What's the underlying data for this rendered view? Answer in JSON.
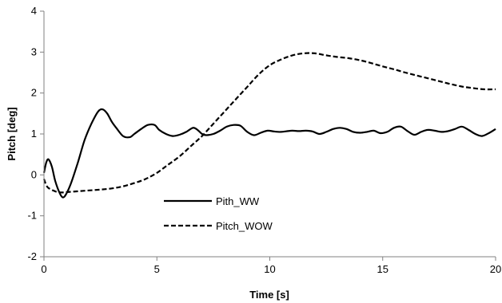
{
  "chart_data": {
    "type": "line",
    "title": "",
    "xlabel": "Time [s]",
    "ylabel": "Pitch [deg]",
    "xlim": [
      0,
      20
    ],
    "ylim": [
      -2,
      4
    ],
    "xticks": [
      "0",
      "5",
      "10",
      "15",
      "20"
    ],
    "yticks": [
      "-2",
      "-1",
      "0",
      "1",
      "2",
      "3",
      "4"
    ],
    "grid": false,
    "legend_position": "center",
    "series": [
      {
        "name": "Pith_WW",
        "style": "solid",
        "color": "#000000",
        "x": [
          0,
          0.1,
          0.2,
          0.35,
          0.5,
          0.7,
          0.85,
          1.0,
          1.2,
          1.5,
          1.8,
          2.1,
          2.4,
          2.6,
          2.8,
          3.0,
          3.2,
          3.5,
          3.8,
          4.0,
          4.3,
          4.6,
          4.9,
          5.1,
          5.4,
          5.7,
          6.0,
          6.3,
          6.6,
          6.8,
          7.0,
          7.2,
          7.5,
          7.8,
          8.1,
          8.4,
          8.7,
          9.0,
          9.3,
          9.6,
          9.9,
          10.2,
          10.5,
          10.8,
          11.0,
          11.3,
          11.6,
          11.9,
          12.2,
          12.5,
          12.8,
          13.1,
          13.4,
          13.7,
          14.0,
          14.3,
          14.6,
          14.9,
          15.2,
          15.5,
          15.8,
          16.1,
          16.4,
          16.7,
          17.0,
          17.3,
          17.6,
          17.9,
          18.2,
          18.5,
          18.8,
          19.1,
          19.4,
          19.7,
          20.0
        ],
        "values": [
          0.05,
          0.3,
          0.38,
          0.2,
          -0.15,
          -0.45,
          -0.55,
          -0.45,
          -0.2,
          0.3,
          0.85,
          1.25,
          1.55,
          1.6,
          1.5,
          1.3,
          1.15,
          0.95,
          0.92,
          1.0,
          1.12,
          1.22,
          1.22,
          1.1,
          1.0,
          0.95,
          0.98,
          1.05,
          1.15,
          1.1,
          1.0,
          0.97,
          1.0,
          1.08,
          1.18,
          1.22,
          1.2,
          1.05,
          0.97,
          1.03,
          1.08,
          1.06,
          1.05,
          1.07,
          1.08,
          1.07,
          1.08,
          1.06,
          1.0,
          1.05,
          1.12,
          1.15,
          1.12,
          1.05,
          1.03,
          1.05,
          1.08,
          1.02,
          1.05,
          1.15,
          1.18,
          1.07,
          0.98,
          1.05,
          1.1,
          1.08,
          1.05,
          1.07,
          1.12,
          1.18,
          1.1,
          1.0,
          0.95,
          1.02,
          1.12
        ]
      },
      {
        "name": "Pitch_WOW",
        "style": "dashed",
        "color": "#000000",
        "x": [
          0,
          0.1,
          0.2,
          0.4,
          0.6,
          0.8,
          1.0,
          1.5,
          2.0,
          2.5,
          3.0,
          3.5,
          4.0,
          4.5,
          5.0,
          5.5,
          6.0,
          6.5,
          7.0,
          7.5,
          8.0,
          8.5,
          9.0,
          9.5,
          10.0,
          10.5,
          11.0,
          11.5,
          12.0,
          12.5,
          13.0,
          13.5,
          14.0,
          14.5,
          15.0,
          15.5,
          16.0,
          16.5,
          17.0,
          17.5,
          18.0,
          18.5,
          19.0,
          19.5,
          20.0
        ],
        "values": [
          -0.1,
          -0.25,
          -0.32,
          -0.38,
          -0.42,
          -0.43,
          -0.42,
          -0.4,
          -0.38,
          -0.36,
          -0.33,
          -0.28,
          -0.2,
          -0.1,
          0.05,
          0.25,
          0.45,
          0.7,
          0.95,
          1.25,
          1.55,
          1.85,
          2.15,
          2.45,
          2.68,
          2.82,
          2.92,
          2.97,
          2.97,
          2.92,
          2.88,
          2.85,
          2.8,
          2.73,
          2.65,
          2.58,
          2.5,
          2.43,
          2.36,
          2.29,
          2.22,
          2.16,
          2.12,
          2.09,
          2.09
        ]
      }
    ]
  }
}
